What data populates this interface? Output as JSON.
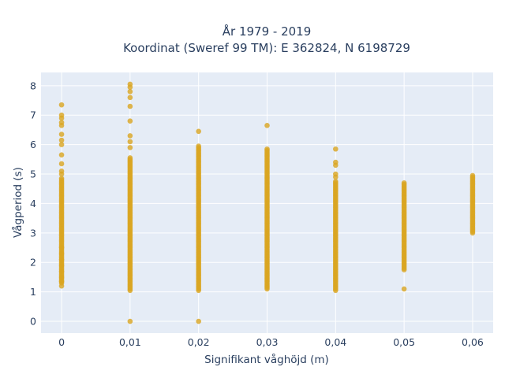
{
  "chart_data": {
    "type": "scatter",
    "title_lines": [
      "År 1979 - 2019",
      "Koordinat (Sweref 99 TM): E 362824, N 6198729"
    ],
    "xlabel": "Signifikant våghöjd (m)",
    "ylabel": "Vågperiod (s)",
    "xlim": [
      -0.003,
      0.063
    ],
    "ylim": [
      -0.4,
      8.45
    ],
    "x_ticks": [
      0,
      0.01,
      0.02,
      0.03,
      0.04,
      0.05,
      0.06
    ],
    "x_tick_labels": [
      "0",
      "0,01",
      "0,02",
      "0,03",
      "0,04",
      "0,05",
      "0,06"
    ],
    "y_ticks": [
      0,
      1,
      2,
      3,
      4,
      5,
      6,
      7,
      8
    ],
    "y_tick_labels": [
      "0",
      "1",
      "2",
      "3",
      "4",
      "5",
      "6",
      "7",
      "8"
    ],
    "grid": true,
    "marker_color": "#DAA520",
    "plot_background": "#E5ECF6",
    "columns": [
      {
        "x": 0,
        "range": [
          1.3,
          4.85
        ],
        "points": [
          1.2,
          1.35,
          1.5,
          1.7,
          1.9,
          2.1,
          2.3,
          2.5,
          5.0,
          5.1,
          5.35,
          5.65,
          6.0,
          6.15,
          6.35,
          6.65,
          6.75,
          6.9,
          7.0,
          7.35
        ]
      },
      {
        "x": 0.01,
        "range": [
          1.05,
          5.55
        ],
        "points": [
          0.0,
          5.9,
          6.1,
          6.3,
          6.8,
          7.3,
          7.6,
          7.8,
          7.95,
          8.05
        ]
      },
      {
        "x": 0.02,
        "range": [
          1.05,
          5.95
        ],
        "points": [
          0.0,
          6.45
        ]
      },
      {
        "x": 0.03,
        "range": [
          1.1,
          5.85
        ],
        "points": [
          6.65
        ]
      },
      {
        "x": 0.04,
        "range": [
          1.05,
          4.75
        ],
        "points": [
          4.9,
          5.0,
          5.3,
          5.4,
          5.85
        ]
      },
      {
        "x": 0.05,
        "range": [
          1.75,
          4.7
        ],
        "points": [
          1.1
        ]
      },
      {
        "x": 0.06,
        "range": [
          3.0,
          4.95
        ],
        "points": []
      }
    ]
  }
}
